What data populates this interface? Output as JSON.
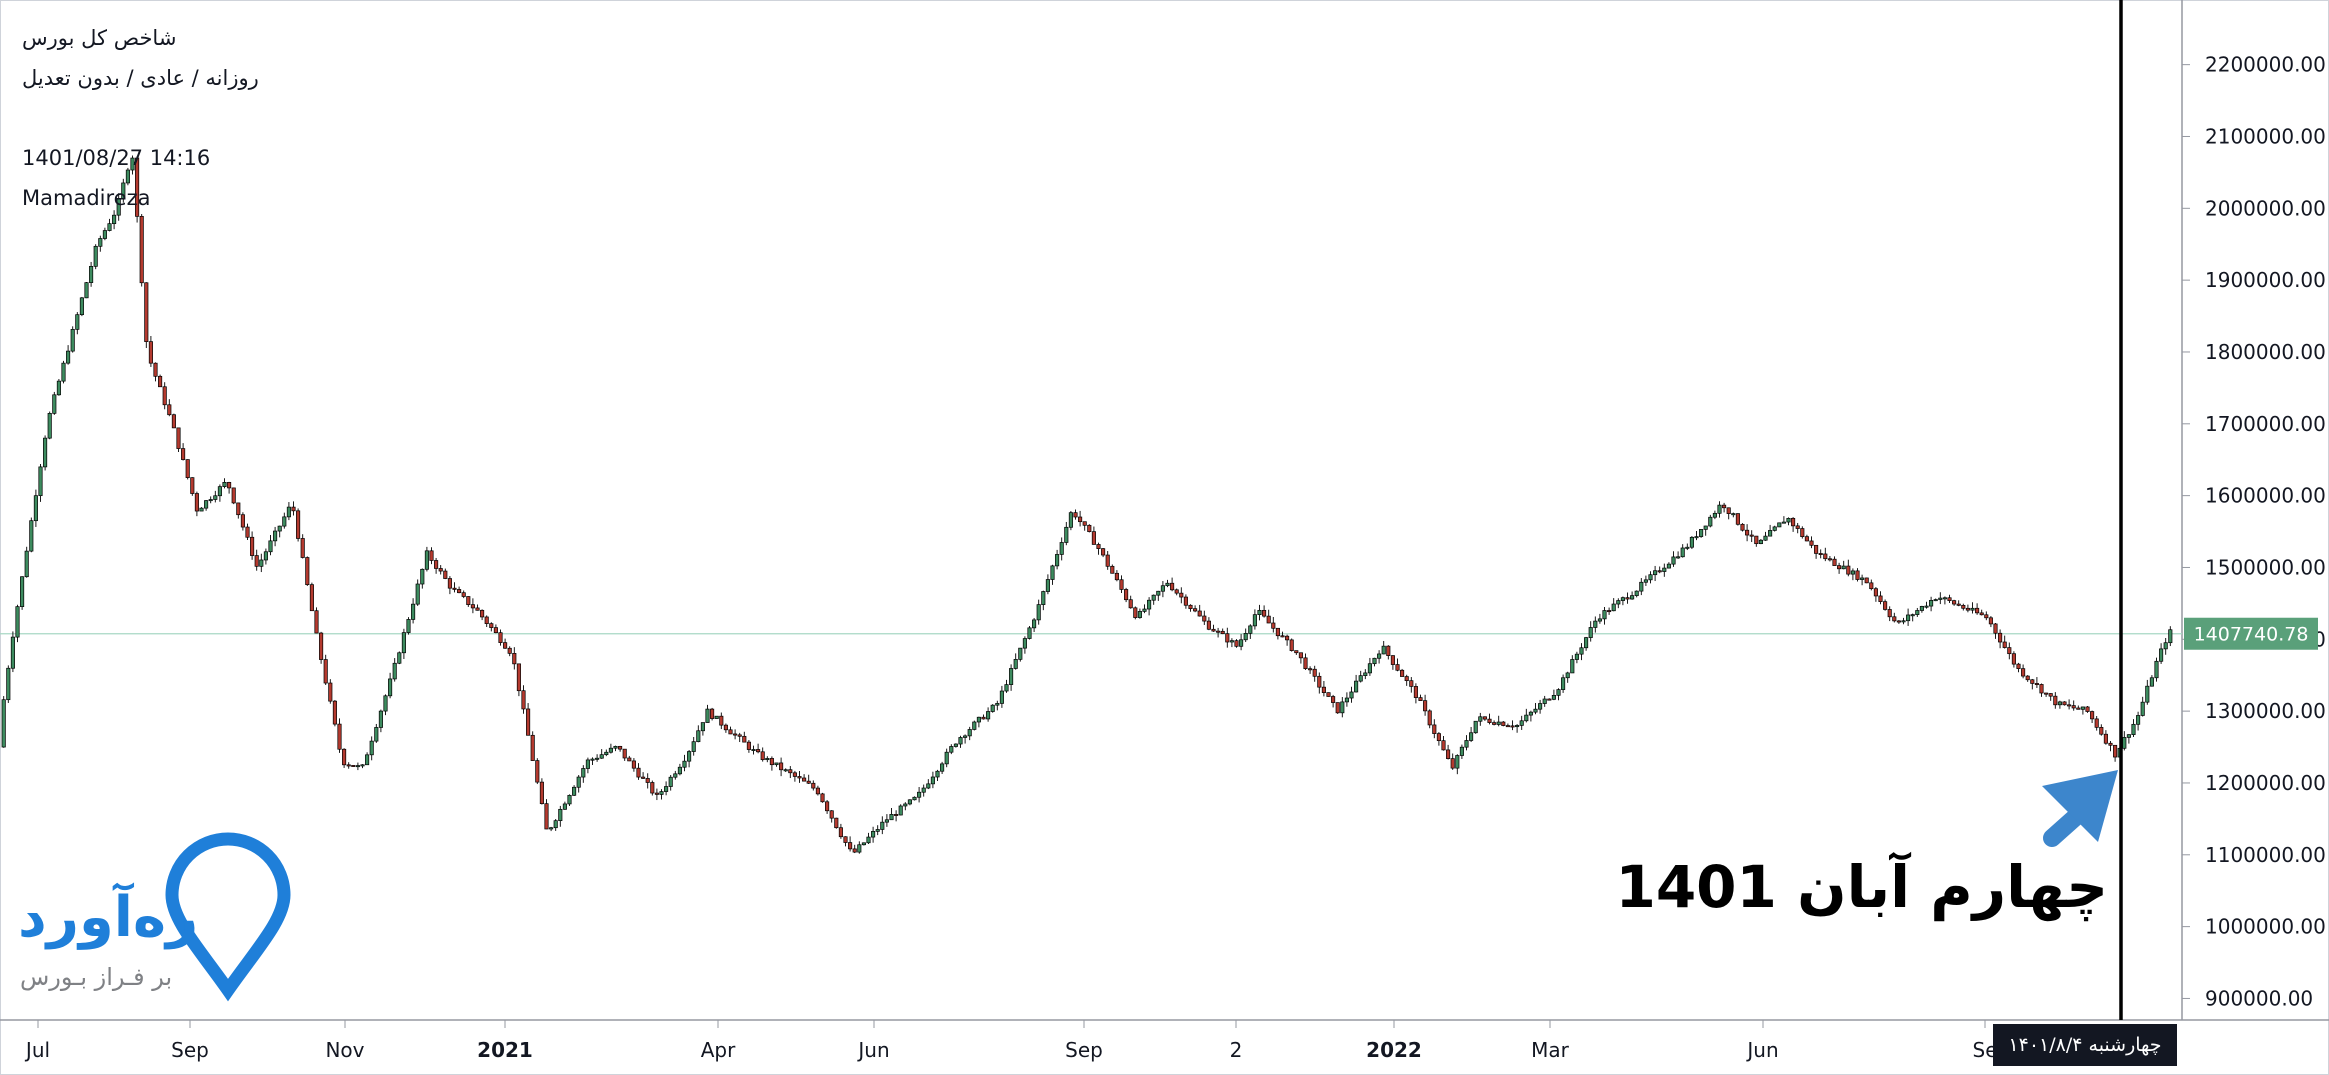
{
  "header": {
    "symbol": "شاخص کل بورس",
    "subtitle": "روزانه / عادی / بدون تعدیل",
    "datetime": "1401/08/27 14:16",
    "author": "Mamadireza"
  },
  "annotation": "چهارم آبان 1401",
  "date_label": "چهارشنبه ۱۴۰۱/۸/۴",
  "logo": {
    "name": "ره‌آورد",
    "tagline": "بر فـراز بـورس",
    "color": "#1f7fd9"
  },
  "colors": {
    "up": "#3d8b5f",
    "down": "#b43a2f",
    "grid_line": "#a8d8c4",
    "last_price_bg": "#5aa07a",
    "arrow": "#3d86cc"
  },
  "chart_data": {
    "type": "candlestick",
    "title": "شاخص کل بورس",
    "x_tick_labels": [
      "Jul",
      "Sep",
      "Nov",
      "2021",
      "Apr",
      "Jun",
      "Sep",
      "2",
      "2022",
      "Mar",
      "Jun",
      "Se"
    ],
    "y_tick_labels": [
      "2200000.00",
      "2100000.00",
      "2000000.00",
      "1900000.00",
      "1800000.00",
      "1700000.00",
      "1600000.00",
      "1500000.00",
      "1400000.00",
      "1300000.00",
      "1200000.00",
      "1100000.00",
      "1000000.00",
      "900000.00"
    ],
    "y_ticks": [
      2200000,
      2100000,
      2000000,
      1900000,
      1800000,
      1700000,
      1600000,
      1500000,
      1400000,
      1300000,
      1200000,
      1100000,
      1000000,
      900000
    ],
    "ylim": [
      870000,
      2290000
    ],
    "last_price": 1407740.78,
    "last_price_label": "1407740.78",
    "marker_date": "1401/8/4",
    "path": [
      [
        0,
        1250000
      ],
      [
        15,
        1400000
      ],
      [
        50,
        1700000
      ],
      [
        80,
        1850000
      ],
      [
        100,
        1950000
      ],
      [
        120,
        2000000
      ],
      [
        135,
        2080000
      ],
      [
        150,
        1800000
      ],
      [
        175,
        1700000
      ],
      [
        200,
        1580000
      ],
      [
        230,
        1620000
      ],
      [
        260,
        1500000
      ],
      [
        295,
        1590000
      ],
      [
        320,
        1400000
      ],
      [
        345,
        1230000
      ],
      [
        365,
        1220000
      ],
      [
        395,
        1350000
      ],
      [
        430,
        1520000
      ],
      [
        455,
        1470000
      ],
      [
        480,
        1440000
      ],
      [
        515,
        1380000
      ],
      [
        550,
        1130000
      ],
      [
        590,
        1230000
      ],
      [
        620,
        1250000
      ],
      [
        660,
        1180000
      ],
      [
        690,
        1240000
      ],
      [
        710,
        1300000
      ],
      [
        760,
        1240000
      ],
      [
        820,
        1190000
      ],
      [
        855,
        1100000
      ],
      [
        890,
        1150000
      ],
      [
        920,
        1180000
      ],
      [
        960,
        1260000
      ],
      [
        1000,
        1310000
      ],
      [
        1040,
        1440000
      ],
      [
        1075,
        1580000
      ],
      [
        1100,
        1530000
      ],
      [
        1140,
        1430000
      ],
      [
        1170,
        1480000
      ],
      [
        1210,
        1420000
      ],
      [
        1240,
        1390000
      ],
      [
        1260,
        1440000
      ],
      [
        1300,
        1380000
      ],
      [
        1340,
        1300000
      ],
      [
        1385,
        1390000
      ],
      [
        1420,
        1320000
      ],
      [
        1455,
        1220000
      ],
      [
        1480,
        1290000
      ],
      [
        1520,
        1280000
      ],
      [
        1560,
        1330000
      ],
      [
        1600,
        1430000
      ],
      [
        1640,
        1470000
      ],
      [
        1690,
        1530000
      ],
      [
        1725,
        1590000
      ],
      [
        1760,
        1530000
      ],
      [
        1790,
        1570000
      ],
      [
        1820,
        1520000
      ],
      [
        1870,
        1480000
      ],
      [
        1900,
        1420000
      ],
      [
        1940,
        1460000
      ],
      [
        1990,
        1430000
      ],
      [
        2020,
        1360000
      ],
      [
        2060,
        1310000
      ],
      [
        2090,
        1300000
      ],
      [
        2118,
        1240000
      ],
      [
        2140,
        1290000
      ],
      [
        2160,
        1370000
      ],
      [
        2172,
        1410000
      ]
    ]
  }
}
